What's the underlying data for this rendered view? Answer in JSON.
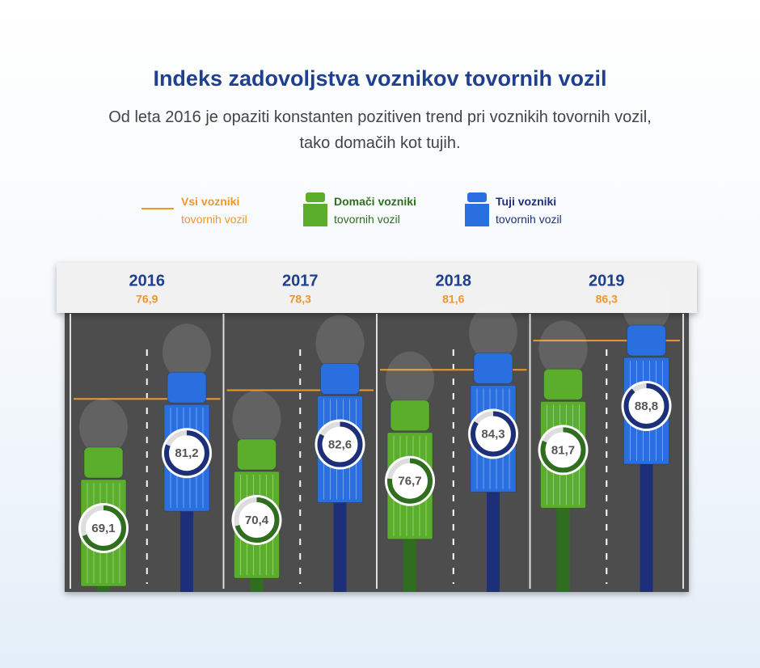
{
  "chart_data": {
    "type": "bar",
    "title": "Indeks zadovoljstva voznikov tovornih vozil",
    "subtitle": [
      "Od leta 2016 je opaziti konstanten pozitiven trend pri voznikih tovornih vozil,",
      "tako domačih kot tujih."
    ],
    "categories": [
      "2016",
      "2017",
      "2018",
      "2019"
    ],
    "series": [
      {
        "name": "Vsi vozniki tovornih vozil",
        "type": "line",
        "color": "#f0962a",
        "values": [
          76.9,
          78.3,
          81.6,
          86.3
        ],
        "value_labels": [
          "76,9",
          "78,3",
          "81,6",
          "86,3"
        ]
      },
      {
        "name": "Domači vozniki tovornih vozil",
        "color": "#5aae2c",
        "values": [
          69.1,
          70.4,
          76.7,
          81.7
        ],
        "value_labels": [
          "69,1",
          "70,4",
          "76,7",
          "81,7"
        ]
      },
      {
        "name": "Tuji vozniki tovornih vozil",
        "color": "#2a6fe0",
        "values": [
          81.2,
          82.6,
          84.3,
          88.8
        ],
        "value_labels": [
          "81,2",
          "82,6",
          "84,3",
          "88,8"
        ]
      }
    ]
  }
}
